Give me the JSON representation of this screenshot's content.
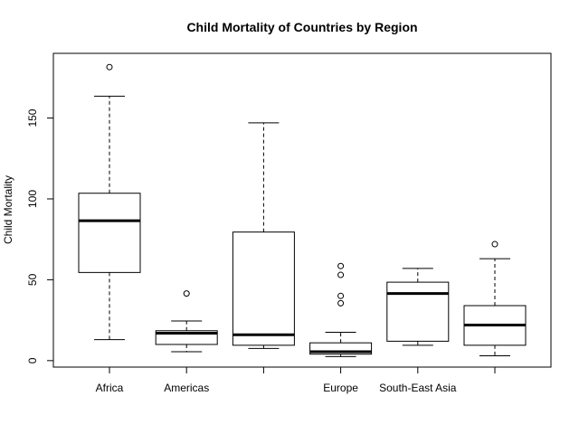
{
  "chart_data": {
    "type": "boxplot",
    "title": "Child Mortality of Countries by Region",
    "xlabel": "",
    "ylabel": "Child Mortality",
    "y_ticks": [
      0,
      50,
      100,
      150
    ],
    "categories": [
      "Africa",
      "Americas",
      "",
      "Europe",
      "South-East Asia",
      ""
    ],
    "boxes": [
      {
        "min": 13,
        "q1": 54.5,
        "median": 86.5,
        "q3": 103.5,
        "max": 163.5,
        "outliers": [
          181.5
        ]
      },
      {
        "min": 5.5,
        "q1": 10,
        "median": 17,
        "q3": 18.5,
        "max": 24.5,
        "outliers": [
          41.5
        ]
      },
      {
        "min": 7.5,
        "q1": 9.5,
        "median": 16,
        "q3": 79.5,
        "max": 147,
        "outliers": []
      },
      {
        "min": 2.5,
        "q1": 4,
        "median": 5.5,
        "q3": 11,
        "max": 17.5,
        "outliers": [
          35.5,
          40,
          53,
          58.5
        ]
      },
      {
        "min": 9.5,
        "q1": 12,
        "median": 41.5,
        "q3": 48.5,
        "max": 57,
        "outliers": []
      },
      {
        "min": 3,
        "q1": 9.5,
        "median": 22,
        "q3": 34,
        "max": 63,
        "outliers": [
          72
        ]
      }
    ],
    "ylim": [
      -4,
      190
    ],
    "grid": false,
    "legend": "none"
  }
}
